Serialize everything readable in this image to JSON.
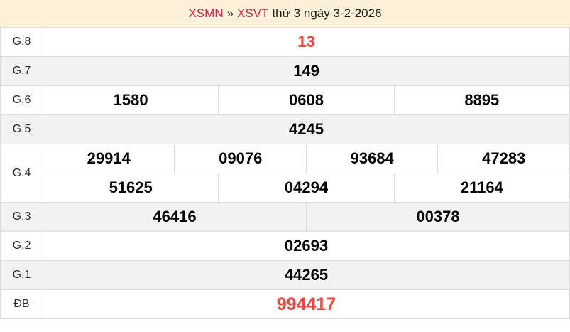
{
  "header": {
    "region_link": "XSMN",
    "separator": "»",
    "station_link": "XSVT",
    "date_text": "thứ 3 ngày 3-2-2026"
  },
  "colors": {
    "header_bg": "#fdf0d9",
    "link_red": "#d0214a",
    "accent_red": "#f4433c",
    "row_alt_bg": "#f2f2f2",
    "border": "#dddddd"
  },
  "prizes": [
    {
      "label": "G.8",
      "values": [
        "13"
      ]
    },
    {
      "label": "G.7",
      "values": [
        "149"
      ]
    },
    {
      "label": "G.6",
      "values": [
        "1580",
        "0608",
        "8895"
      ]
    },
    {
      "label": "G.5",
      "values": [
        "4245"
      ]
    },
    {
      "label": "G.4",
      "values": [
        "29914",
        "09076",
        "93684",
        "47283",
        "51625",
        "04294",
        "21164"
      ]
    },
    {
      "label": "G.3",
      "values": [
        "46416",
        "00378"
      ]
    },
    {
      "label": "G.2",
      "values": [
        "02693"
      ]
    },
    {
      "label": "G.1",
      "values": [
        "44265"
      ]
    },
    {
      "label": "ĐB",
      "values": [
        "994417"
      ]
    }
  ]
}
